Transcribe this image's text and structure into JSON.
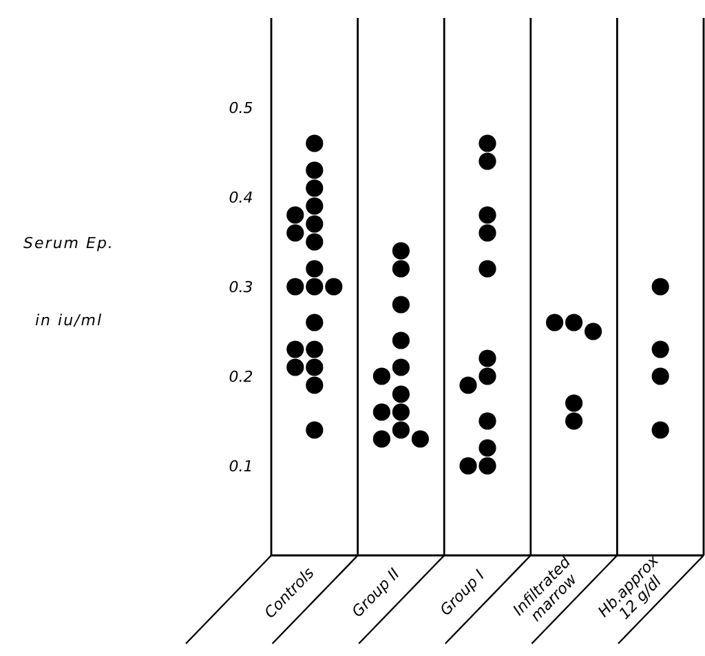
{
  "chart_data": {
    "type": "scatter",
    "ylabel": "Serum Ep. in iu/ml",
    "categories": [
      "Controls",
      "Group II",
      "Group I",
      "Infiltrated marrow",
      "Hb.approx 12 g/dl"
    ],
    "ylim": [
      0,
      0.6
    ],
    "yticks": [
      0.1,
      0.2,
      0.3,
      0.4,
      0.5
    ],
    "marker": "circle",
    "series": [
      {
        "color": "#000000",
        "x": [
          "Controls",
          "Controls",
          "Controls",
          "Controls",
          "Controls",
          "Controls",
          "Controls",
          "Controls",
          "Controls",
          "Controls",
          "Controls",
          "Controls",
          "Controls",
          "Controls",
          "Controls",
          "Controls",
          "Controls",
          "Controls",
          "Controls"
        ],
        "values": [
          0.46,
          0.43,
          0.41,
          0.39,
          0.38,
          0.37,
          0.36,
          0.35,
          0.32,
          0.3,
          0.3,
          0.3,
          0.26,
          0.23,
          0.23,
          0.21,
          0.21,
          0.19,
          0.14
        ]
      },
      {
        "color": "#000000",
        "x": [
          "Group II",
          "Group II",
          "Group II",
          "Group II",
          "Group II",
          "Group II",
          "Group II",
          "Group II",
          "Group II",
          "Group II",
          "Group II",
          "Group II"
        ],
        "values": [
          0.34,
          0.32,
          0.28,
          0.24,
          0.21,
          0.2,
          0.18,
          0.16,
          0.16,
          0.14,
          0.13,
          0.13
        ]
      },
      {
        "color": "#000000",
        "x": [
          "Group I",
          "Group I",
          "Group I",
          "Group I",
          "Group I",
          "Group I",
          "Group I",
          "Group I",
          "Group I",
          "Group I",
          "Group I",
          "Group I"
        ],
        "values": [
          0.46,
          0.44,
          0.38,
          0.36,
          0.32,
          0.22,
          0.2,
          0.19,
          0.15,
          0.12,
          0.1,
          0.1
        ]
      },
      {
        "color": "#000000",
        "x": [
          "Infiltrated marrow",
          "Infiltrated marrow",
          "Infiltrated marrow",
          "Infiltrated marrow",
          "Infiltrated marrow"
        ],
        "values": [
          0.26,
          0.26,
          0.25,
          0.17,
          0.15
        ]
      },
      {
        "color": "#000000",
        "x": [
          "Hb.approx 12 g/dl",
          "Hb.approx 12 g/dl",
          "Hb.approx 12 g/dl",
          "Hb.approx 12 g/dl"
        ],
        "values": [
          0.3,
          0.23,
          0.2,
          0.14
        ]
      }
    ]
  }
}
